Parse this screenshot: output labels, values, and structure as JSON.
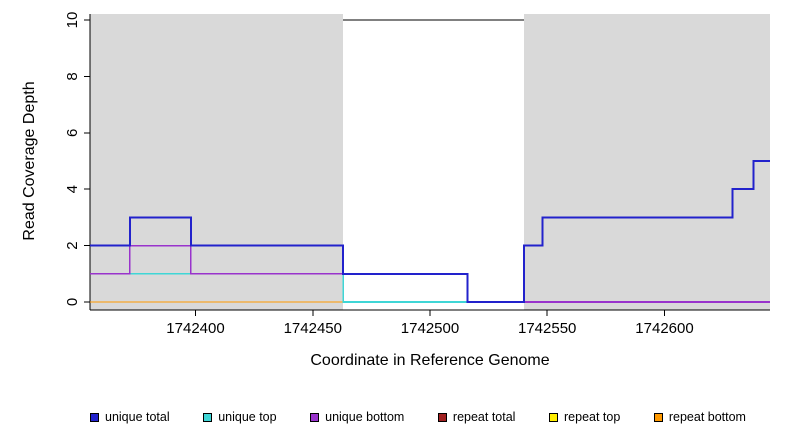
{
  "chart_data": {
    "type": "line",
    "subtype": "step-coverage",
    "title": "",
    "xlabel": "Coordinate in Reference Genome",
    "ylabel": "Read Coverage Depth",
    "xlim": [
      1742355,
      1742645
    ],
    "ylim": [
      0,
      10
    ],
    "x_ticks": [
      1742400,
      1742450,
      1742500,
      1742550,
      1742600
    ],
    "y_ticks": [
      0,
      2,
      4,
      6,
      8,
      10
    ],
    "grid": false,
    "legend_position": "bottom",
    "background_regions": [
      {
        "name": "unique-region-left",
        "x0": 1742355,
        "x1": 1742463,
        "color": "#d9d9d9"
      },
      {
        "name": "unique-region-right",
        "x0": 1742540,
        "x1": 1742645,
        "color": "#d9d9d9"
      }
    ],
    "annotations": [
      {
        "name": "repeat-region-top-line",
        "type": "hline-segment",
        "y": 10,
        "x0": 1742463,
        "x1": 1742540,
        "color": "#000000"
      }
    ],
    "series": [
      {
        "name": "repeat total",
        "color": "#a02020",
        "width": 1.4,
        "step_points": [
          [
            1742355,
            0
          ],
          [
            1742645,
            0
          ]
        ]
      },
      {
        "name": "repeat top",
        "color": "#ffee00",
        "width": 1.4,
        "step_points": [
          [
            1742355,
            0
          ],
          [
            1742645,
            0
          ]
        ]
      },
      {
        "name": "repeat bottom",
        "color": "#ff9900",
        "width": 1.4,
        "step_points": [
          [
            1742355,
            0
          ],
          [
            1742645,
            0
          ]
        ]
      },
      {
        "name": "unique top",
        "color": "#3fd6d6",
        "width": 1.6,
        "step_points": [
          [
            1742355,
            1
          ],
          [
            1742463,
            0
          ],
          [
            1742645,
            0
          ]
        ]
      },
      {
        "name": "unique bottom",
        "color": "#9933cc",
        "width": 1.6,
        "step_points": [
          [
            1742355,
            1
          ],
          [
            1742372,
            2
          ],
          [
            1742398,
            1
          ],
          [
            1742516,
            0
          ],
          [
            1742645,
            0
          ]
        ]
      },
      {
        "name": "unique total",
        "color": "#2222cc",
        "width": 2,
        "step_points": [
          [
            1742355,
            2
          ],
          [
            1742372,
            3
          ],
          [
            1742398,
            2
          ],
          [
            1742463,
            1
          ],
          [
            1742516,
            0
          ],
          [
            1742540,
            2
          ],
          [
            1742548,
            3
          ],
          [
            1742629,
            4
          ],
          [
            1742638,
            5
          ],
          [
            1742645,
            5
          ]
        ]
      }
    ],
    "legend": [
      {
        "label": "unique total",
        "color": "#2222cc"
      },
      {
        "label": "unique top",
        "color": "#3fd6d6"
      },
      {
        "label": "unique bottom",
        "color": "#9933cc"
      },
      {
        "label": "repeat total",
        "color": "#a02020"
      },
      {
        "label": "repeat top",
        "color": "#ffee00"
      },
      {
        "label": "repeat bottom",
        "color": "#ff9900"
      }
    ]
  }
}
